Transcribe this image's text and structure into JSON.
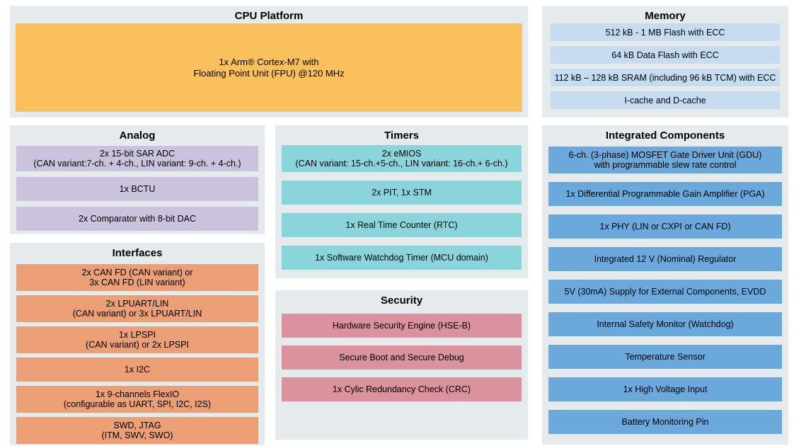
{
  "colors": {
    "panel_bg": "#E5EAEC",
    "cpu_block": "#FAC05C",
    "memory_row": "#C6DCF0",
    "analog_row": "#CBC3DD",
    "timers_row": "#8AD4DC",
    "interfaces_row": "#EC9E74",
    "security_row": "#D9929E",
    "integrated_row": "#6BA8DB"
  },
  "panels": {
    "cpu_platform": {
      "title": "CPU Platform",
      "block_text": "1x Arm® Cortex-M7 with\nFloating Point Unit (FPU) @120 MHz"
    },
    "memory": {
      "title": "Memory",
      "rows": [
        "512 kB - 1 MB Flash with ECC",
        "64 kB Data Flash with ECC",
        "112 kB – 128 kB SRAM (including 96 kB TCM) with ECC",
        "I-cache and D-cache"
      ]
    },
    "analog": {
      "title": "Analog",
      "rows": [
        "2x 15-bit SAR ADC\n(CAN variant:7-ch. + 4-ch., LIN variant: 9-ch. + 4-ch.)",
        "1x BCTU",
        "2x Comparator with 8-bit DAC"
      ]
    },
    "interfaces": {
      "title": "Interfaces",
      "rows": [
        "2x CAN FD (CAN variant) or\n3x CAN FD (LIN variant)",
        "2x LPUART/LIN\n(CAN variant) or 3x LPUART/LIN",
        "1x LPSPI\n(CAN variant) or 2x LPSPI",
        "1x I2C",
        "1x 9-channels FlexIO\n(configurable as UART, SPI, I2C, I2S)",
        "SWD, JTAG\n(ITM, SWV, SWO)"
      ]
    },
    "timers": {
      "title": "Timers",
      "rows": [
        "2x eMIOS\n(CAN variant: 15-ch.+5-ch., LIN variant: 16-ch.+ 6-ch.)",
        "2x PIT, 1x STM",
        "1x Real Time Counter (RTC)",
        "1x Software Watchdog Timer (MCU domain)"
      ]
    },
    "security": {
      "title": "Security",
      "rows": [
        "Hardware Security Engine (HSE-B)",
        "Secure Boot and Secure Debug",
        "1x Cylic Redundancy Check (CRC)"
      ]
    },
    "integrated_components": {
      "title": "Integrated Components",
      "rows": [
        "6-ch. (3-phase) MOSFET Gate Driver Unit (GDU)\nwith programmable slew rate control",
        "1x Differential Programmable Gain Amplifier (PGA)",
        "1x PHY (LIN or CXPI or CAN FD)",
        "Integrated 12 V (Nominal) Regulator",
        "5V (30mA) Supply for External Components, EVDD",
        "Internal Safety Monitor (Watchdog)",
        "Temperature Sensor",
        "1x High Voltage Input",
        "Battery Monitoring Pin"
      ]
    }
  }
}
